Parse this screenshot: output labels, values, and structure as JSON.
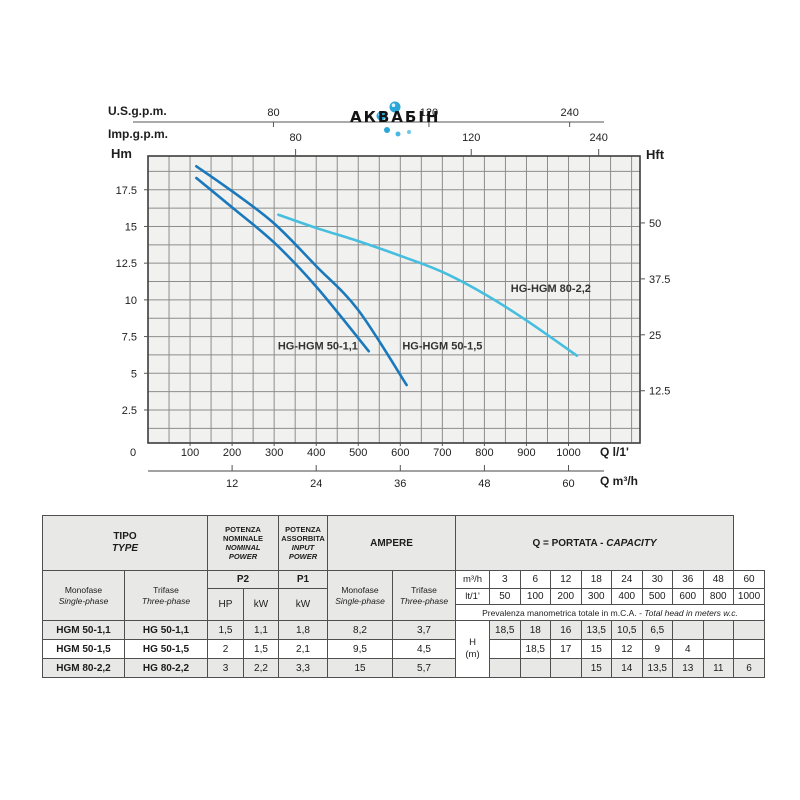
{
  "logo": {
    "brand": "АКВАБІН"
  },
  "chart_data": {
    "type": "line",
    "xlabel_primary": "Q l/1'",
    "xlabel_secondary": "Q m³/h",
    "ylabel_left": "Hm",
    "ylabel_right": "Hft",
    "xlim": [
      0,
      1170
    ],
    "ylim": [
      0.25,
      19.8
    ],
    "grid": {
      "x_step": 50,
      "y_step": 1.25,
      "on": true
    },
    "x_ticks_l1": [
      0,
      100,
      200,
      300,
      400,
      500,
      600,
      700,
      800,
      900,
      1000
    ],
    "x_ticks_m3h": [
      12,
      24,
      36,
      48,
      60
    ],
    "y_ticks_hm": [
      2.5,
      5,
      7.5,
      10,
      12.5,
      15,
      17.5
    ],
    "y_ticks_hft": [
      12.5,
      25,
      37.5,
      50
    ],
    "top_axis_us": {
      "label": "U.S.g.p.m.",
      "ticks": [
        {
          "label": "80",
          "fx": 0.255
        },
        {
          "label": "120",
          "fx": 0.571
        },
        {
          "label": "240",
          "fx": 0.857
        }
      ]
    },
    "top_axis_imp": {
      "label": "Imp.g.p.m.",
      "ticks": [
        {
          "label": "80",
          "fx": 0.3
        },
        {
          "label": "120",
          "fx": 0.657
        },
        {
          "label": "240",
          "fx": 0.916
        }
      ]
    },
    "series": [
      {
        "name": "HG-HGM 50-1,1",
        "color": "#1a79bd",
        "points": [
          [
            115,
            18.3
          ],
          [
            200,
            16.3
          ],
          [
            300,
            13.9
          ],
          [
            400,
            10.9
          ],
          [
            525,
            6.5
          ]
        ],
        "label_at": [
          404,
          6.9
        ]
      },
      {
        "name": "HG-HGM 50-1,5",
        "color": "#1a79bd",
        "points": [
          [
            115,
            19.1
          ],
          [
            200,
            17.4
          ],
          [
            300,
            15.2
          ],
          [
            400,
            12.3
          ],
          [
            500,
            9.3
          ],
          [
            615,
            4.2
          ]
        ],
        "label_at": [
          700,
          6.9
        ]
      },
      {
        "name": "HG-HGM 80-2,2",
        "color": "#45bedf",
        "points": [
          [
            310,
            15.8
          ],
          [
            400,
            14.9
          ],
          [
            500,
            14.0
          ],
          [
            600,
            13.0
          ],
          [
            700,
            11.9
          ],
          [
            800,
            10.4
          ],
          [
            900,
            8.6
          ],
          [
            1020,
            6.2
          ]
        ],
        "label_at": [
          958,
          10.8
        ]
      }
    ]
  },
  "table": {
    "header": {
      "tipo_it": "TIPO",
      "tipo_en": "TYPE",
      "pn_it1": "POTENZA",
      "pn_it2": "NOMINALE",
      "pn_en1": "NOMINAL",
      "pn_en2": "POWER",
      "pa_it1": "POTENZA",
      "pa_it2": "ASSORBITA",
      "pa_en1": "INPUT",
      "pa_en2": "POWER",
      "ampere": "AMPERE",
      "portata_it": "Q = PORTATA -",
      "portata_en": "CAPACITY",
      "mono_it": "Monofase",
      "mono_en": "Single-phase",
      "tri_it": "Trifase",
      "tri_en": "Three-phase",
      "p2": "P2",
      "p1": "P1",
      "hp": "HP",
      "kw": "kW",
      "kw_p1": "kW",
      "m3h_label": "m³/h",
      "lt1_label": "lt/1'",
      "m3h_values": [
        "3",
        "6",
        "12",
        "18",
        "24",
        "30",
        "36",
        "48",
        "60"
      ],
      "lt1_values": [
        "50",
        "100",
        "200",
        "300",
        "400",
        "500",
        "600",
        "800",
        "1000"
      ],
      "note_it": "Prevalenza manometrica totale in m.C.A.",
      "note_en": "- Total head in meters w.c.",
      "h_label": "H",
      "h_unit": "(m)"
    },
    "rows": [
      {
        "mono": "HGM 50-1,1",
        "tri": "HG 50-1,1",
        "hp": "1,5",
        "kw": "1,1",
        "p1_kw": "1,8",
        "amp_mono": "8,2",
        "amp_tri": "3,7",
        "heads": [
          "18,5",
          "18",
          "16",
          "13,5",
          "10,5",
          "6,5",
          "",
          "",
          ""
        ]
      },
      {
        "mono": "HGM 50-1,5",
        "tri": "HG 50-1,5",
        "hp": "2",
        "kw": "1,5",
        "p1_kw": "2,1",
        "amp_mono": "9,5",
        "amp_tri": "4,5",
        "heads": [
          "",
          "18,5",
          "17",
          "15",
          "12",
          "9",
          "4",
          "",
          ""
        ]
      },
      {
        "mono": "HGM 80-2,2",
        "tri": "HG 80-2,2",
        "hp": "3",
        "kw": "2,2",
        "p1_kw": "3,3",
        "amp_mono": "15",
        "amp_tri": "5,7",
        "heads": [
          "",
          "",
          "",
          "15",
          "14",
          "13,5",
          "13",
          "11",
          "6"
        ]
      }
    ]
  }
}
